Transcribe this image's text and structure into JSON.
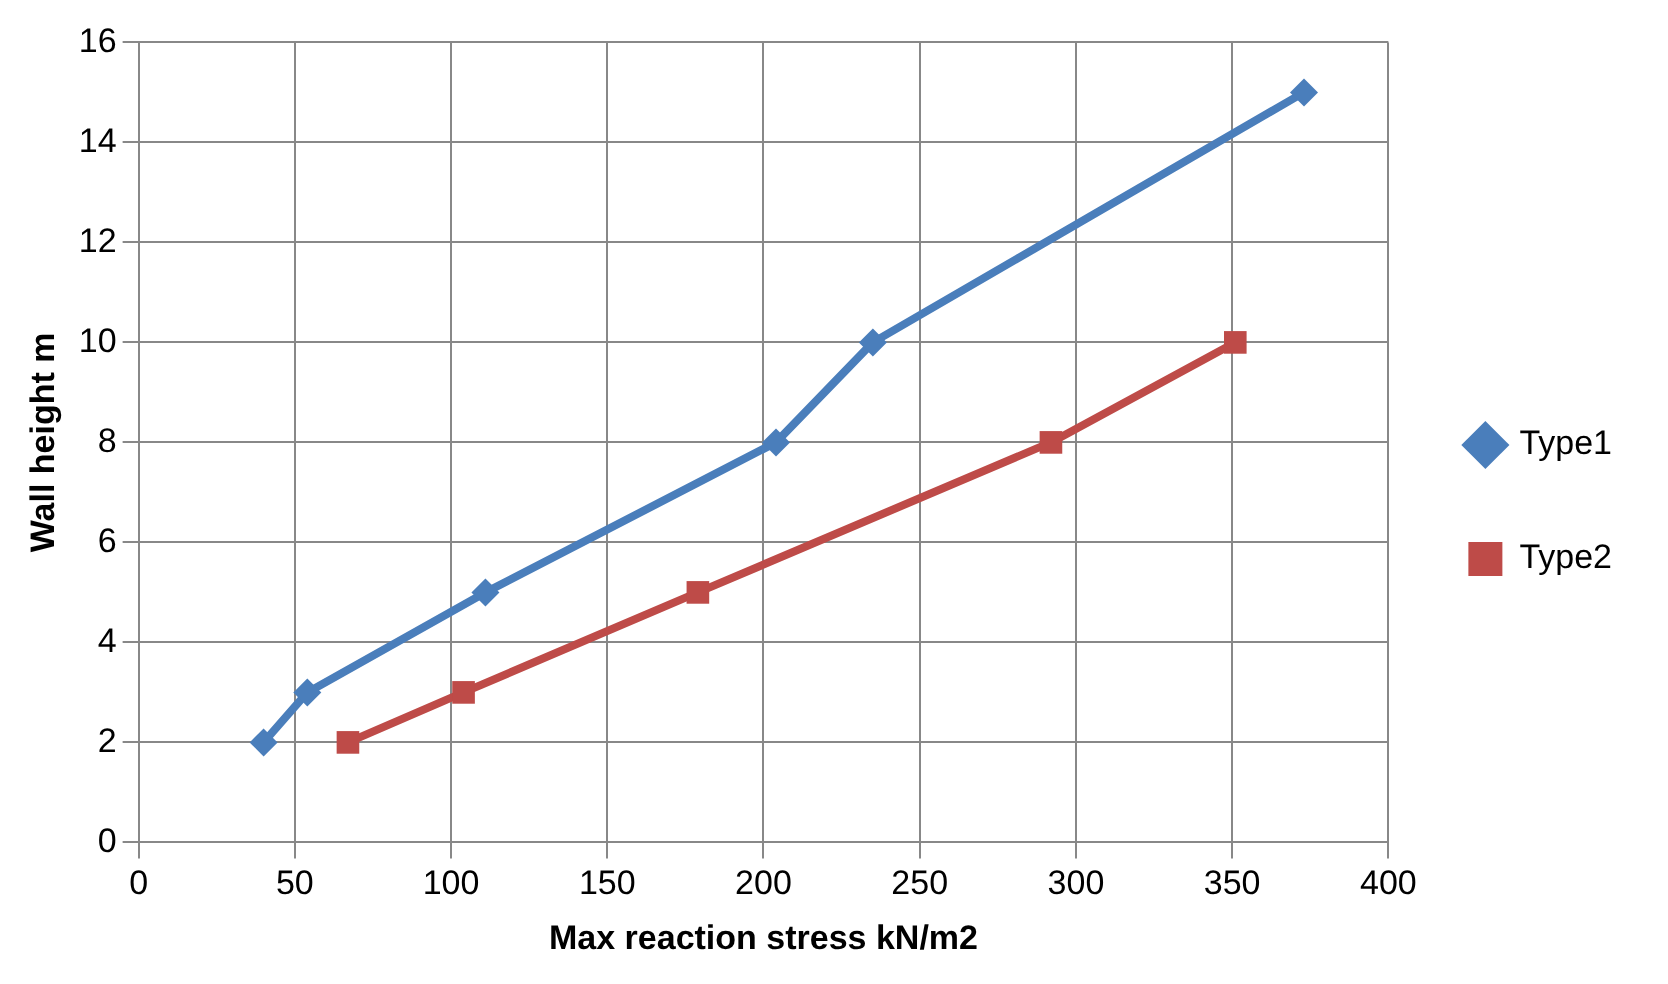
{
  "chart_data": {
    "type": "line",
    "xlabel": "Max reaction stress kN/m2",
    "ylabel": "Wall height m",
    "xlim": [
      0,
      400
    ],
    "xticks": [
      0,
      50,
      100,
      150,
      200,
      250,
      300,
      350,
      400
    ],
    "ylim": [
      0,
      16
    ],
    "yticks": [
      0,
      2,
      4,
      6,
      8,
      10,
      12,
      14,
      16
    ],
    "grid": true,
    "legend": "right",
    "series": [
      {
        "name": "Type1",
        "color": "#4a7ebb",
        "marker": "diamond",
        "x": [
          40,
          54,
          111,
          204,
          235,
          373
        ],
        "values": [
          2,
          3,
          5,
          8,
          10,
          15
        ]
      },
      {
        "name": "Type2",
        "color": "#be4b48",
        "marker": "square",
        "x": [
          67,
          104,
          179,
          292,
          351
        ],
        "values": [
          2,
          3,
          5,
          8,
          10
        ]
      }
    ]
  }
}
